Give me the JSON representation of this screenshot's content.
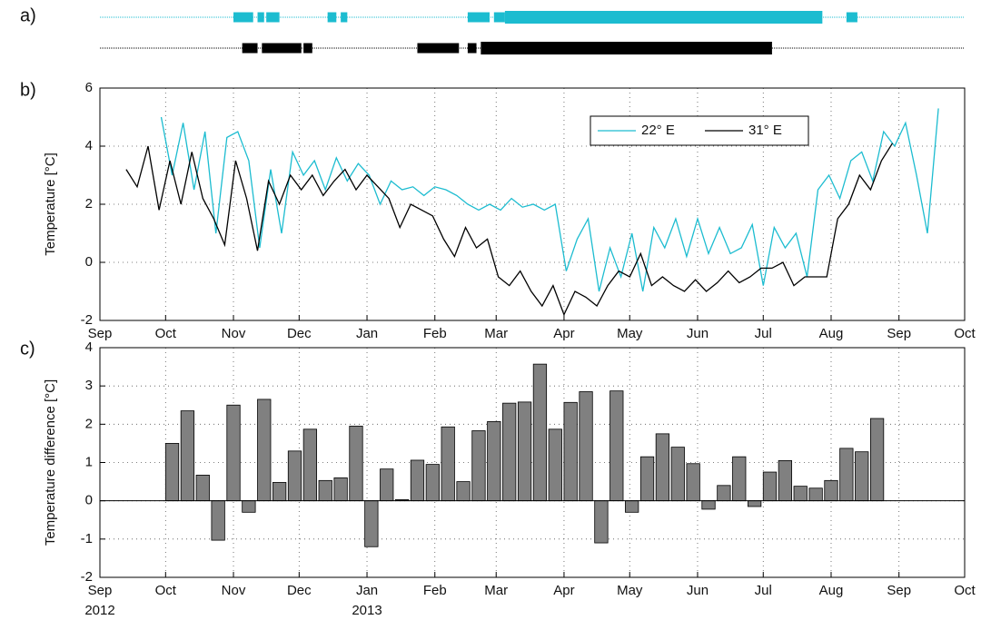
{
  "panel_labels": [
    "a)",
    "b)",
    "c)"
  ],
  "chart_data": [
    {
      "type": "timeline",
      "xlim": [
        0,
        395
      ],
      "series": [
        {
          "color": "#1cbcd0",
          "segments": [
            [
              61,
              70
            ],
            [
              72,
              75
            ],
            [
              76,
              82
            ],
            [
              104,
              108
            ],
            [
              110,
              113
            ],
            [
              168,
              178
            ],
            [
              180,
              185
            ],
            [
              185,
              330
            ],
            [
              341,
              346
            ]
          ]
        },
        {
          "color": "#000000",
          "segments": [
            [
              65,
              72
            ],
            [
              74,
              92
            ],
            [
              93,
              97
            ],
            [
              145,
              164
            ],
            [
              168,
              172
            ],
            [
              174,
              307
            ]
          ]
        }
      ]
    },
    {
      "type": "line",
      "ylabel": "Temperature [°C]",
      "xlim": [
        0,
        395
      ],
      "ylim": [
        -2,
        6
      ],
      "yticks": [
        -2,
        0,
        2,
        4,
        6
      ],
      "xticks": [
        {
          "value": 0,
          "label": "Sep"
        },
        {
          "value": 30,
          "label": "Oct"
        },
        {
          "value": 61,
          "label": "Nov"
        },
        {
          "value": 91,
          "label": "Dec"
        },
        {
          "value": 122,
          "label": "Jan"
        },
        {
          "value": 153,
          "label": "Feb"
        },
        {
          "value": 181,
          "label": "Mar"
        },
        {
          "value": 212,
          "label": "Apr"
        },
        {
          "value": 242,
          "label": "May"
        },
        {
          "value": 273,
          "label": "Jun"
        },
        {
          "value": 303,
          "label": "Jul"
        },
        {
          "value": 334,
          "label": "Aug"
        },
        {
          "value": 365,
          "label": "Sep"
        },
        {
          "value": 395,
          "label": "Oct"
        }
      ],
      "grid": true,
      "legend": "upper right",
      "series": [
        {
          "name": "22° E",
          "color": "#1cbcd0",
          "x": [
            28,
            33,
            38,
            43,
            48,
            53,
            58,
            63,
            68,
            73,
            78,
            83,
            88,
            93,
            98,
            103,
            108,
            113,
            118,
            123,
            128,
            133,
            138,
            143,
            148,
            153,
            158,
            163,
            168,
            173,
            178,
            183,
            188,
            193,
            198,
            203,
            208,
            213,
            218,
            223,
            228,
            233,
            238,
            243,
            248,
            253,
            258,
            263,
            268,
            273,
            278,
            283,
            288,
            293,
            298,
            303,
            308,
            313,
            318,
            323,
            328,
            333,
            338,
            343,
            348,
            353,
            358,
            363,
            368,
            373,
            378,
            383
          ],
          "values": [
            5.0,
            3.0,
            4.8,
            2.5,
            4.5,
            1.0,
            4.3,
            4.5,
            3.5,
            0.5,
            3.2,
            1.0,
            3.8,
            3.0,
            3.5,
            2.5,
            3.6,
            2.8,
            3.4,
            3.0,
            2.0,
            2.8,
            2.5,
            2.6,
            2.3,
            2.6,
            2.5,
            2.3,
            2.0,
            1.8,
            2.0,
            1.8,
            2.2,
            1.9,
            2.0,
            1.8,
            2.0,
            -0.3,
            0.8,
            1.5,
            -1.0,
            0.5,
            -0.5,
            1.0,
            -1.0,
            1.2,
            0.5,
            1.5,
            0.2,
            1.5,
            0.3,
            1.2,
            0.3,
            0.5,
            1.3,
            -0.8,
            1.2,
            0.5,
            1.0,
            -0.5,
            2.5,
            3.0,
            2.2,
            3.5,
            3.8,
            2.8,
            4.5,
            4.0,
            4.8,
            3.0,
            1.0,
            5.3
          ]
        },
        {
          "name": "31° E",
          "color": "#000000",
          "x": [
            12,
            17,
            22,
            27,
            32,
            37,
            42,
            47,
            52,
            57,
            62,
            67,
            72,
            77,
            82,
            87,
            92,
            97,
            102,
            107,
            112,
            117,
            122,
            127,
            132,
            137,
            142,
            147,
            152,
            157,
            162,
            167,
            172,
            177,
            182,
            187,
            192,
            197,
            202,
            207,
            212,
            217,
            222,
            227,
            232,
            237,
            242,
            247,
            252,
            257,
            262,
            267,
            272,
            277,
            282,
            287,
            292,
            297,
            302,
            307,
            312,
            317,
            322,
            327,
            332,
            337,
            342,
            347,
            352,
            357,
            362
          ],
          "values": [
            3.2,
            2.6,
            4.0,
            1.8,
            3.5,
            2.0,
            3.8,
            2.2,
            1.5,
            0.6,
            3.5,
            2.2,
            0.4,
            2.8,
            2.0,
            3.0,
            2.5,
            3.0,
            2.3,
            2.8,
            3.2,
            2.5,
            3.0,
            2.6,
            2.2,
            1.2,
            2.0,
            1.8,
            1.6,
            0.8,
            0.2,
            1.2,
            0.5,
            0.8,
            -0.5,
            -0.8,
            -0.3,
            -1.0,
            -1.5,
            -0.8,
            -1.8,
            -1.0,
            -1.2,
            -1.5,
            -0.8,
            -0.3,
            -0.5,
            0.3,
            -0.8,
            -0.5,
            -0.8,
            -1.0,
            -0.6,
            -1.0,
            -0.7,
            -0.3,
            -0.7,
            -0.5,
            -0.2,
            -0.2,
            0.0,
            -0.8,
            -0.5,
            -0.5,
            -0.5,
            1.5,
            2.0,
            3.0,
            2.5,
            3.5,
            4.1
          ]
        }
      ]
    },
    {
      "type": "bar",
      "ylabel": "Temperature difference [°C]",
      "xlim": [
        0,
        395
      ],
      "ylim": [
        -2,
        4
      ],
      "yticks": [
        -2,
        -1,
        0,
        1,
        2,
        3,
        4
      ],
      "xticks": [
        {
          "value": 0,
          "label": "Sep"
        },
        {
          "value": 30,
          "label": "Oct"
        },
        {
          "value": 61,
          "label": "Nov"
        },
        {
          "value": 91,
          "label": "Dec"
        },
        {
          "value": 122,
          "label": "Jan"
        },
        {
          "value": 153,
          "label": "Feb"
        },
        {
          "value": 181,
          "label": "Mar"
        },
        {
          "value": 212,
          "label": "Apr"
        },
        {
          "value": 242,
          "label": "May"
        },
        {
          "value": 273,
          "label": "Jun"
        },
        {
          "value": 303,
          "label": "Jul"
        },
        {
          "value": 334,
          "label": "Aug"
        },
        {
          "value": 365,
          "label": "Sep"
        },
        {
          "value": 395,
          "label": "Oct"
        }
      ],
      "year_labels": [
        {
          "value": 0,
          "label": "2012"
        },
        {
          "value": 122,
          "label": "2013"
        }
      ],
      "grid": true,
      "color": "#808080",
      "x": [
        33,
        40,
        47,
        54,
        61,
        68,
        75,
        82,
        89,
        96,
        103,
        110,
        117,
        124,
        131,
        138,
        145,
        152,
        159,
        166,
        173,
        180,
        187,
        194,
        201,
        208,
        215,
        222,
        229,
        236,
        243,
        250,
        257,
        264,
        271,
        278,
        285,
        292,
        299,
        306,
        313,
        320,
        327,
        334,
        341,
        348,
        355
      ],
      "values": [
        1.5,
        2.35,
        0.67,
        -1.03,
        2.5,
        -0.3,
        2.65,
        0.48,
        1.3,
        1.87,
        0.53,
        0.6,
        1.95,
        -1.2,
        0.83,
        0.03,
        1.06,
        0.95,
        1.93,
        0.5,
        1.83,
        2.07,
        2.55,
        2.58,
        3.57,
        1.87,
        2.57,
        2.85,
        -1.1,
        2.87,
        -0.3,
        1.15,
        1.75,
        1.4,
        0.97,
        -0.22,
        0.4,
        1.15,
        -0.15,
        0.75,
        1.05,
        0.38,
        0.33,
        0.53,
        1.37,
        1.28,
        2.15
      ]
    }
  ]
}
